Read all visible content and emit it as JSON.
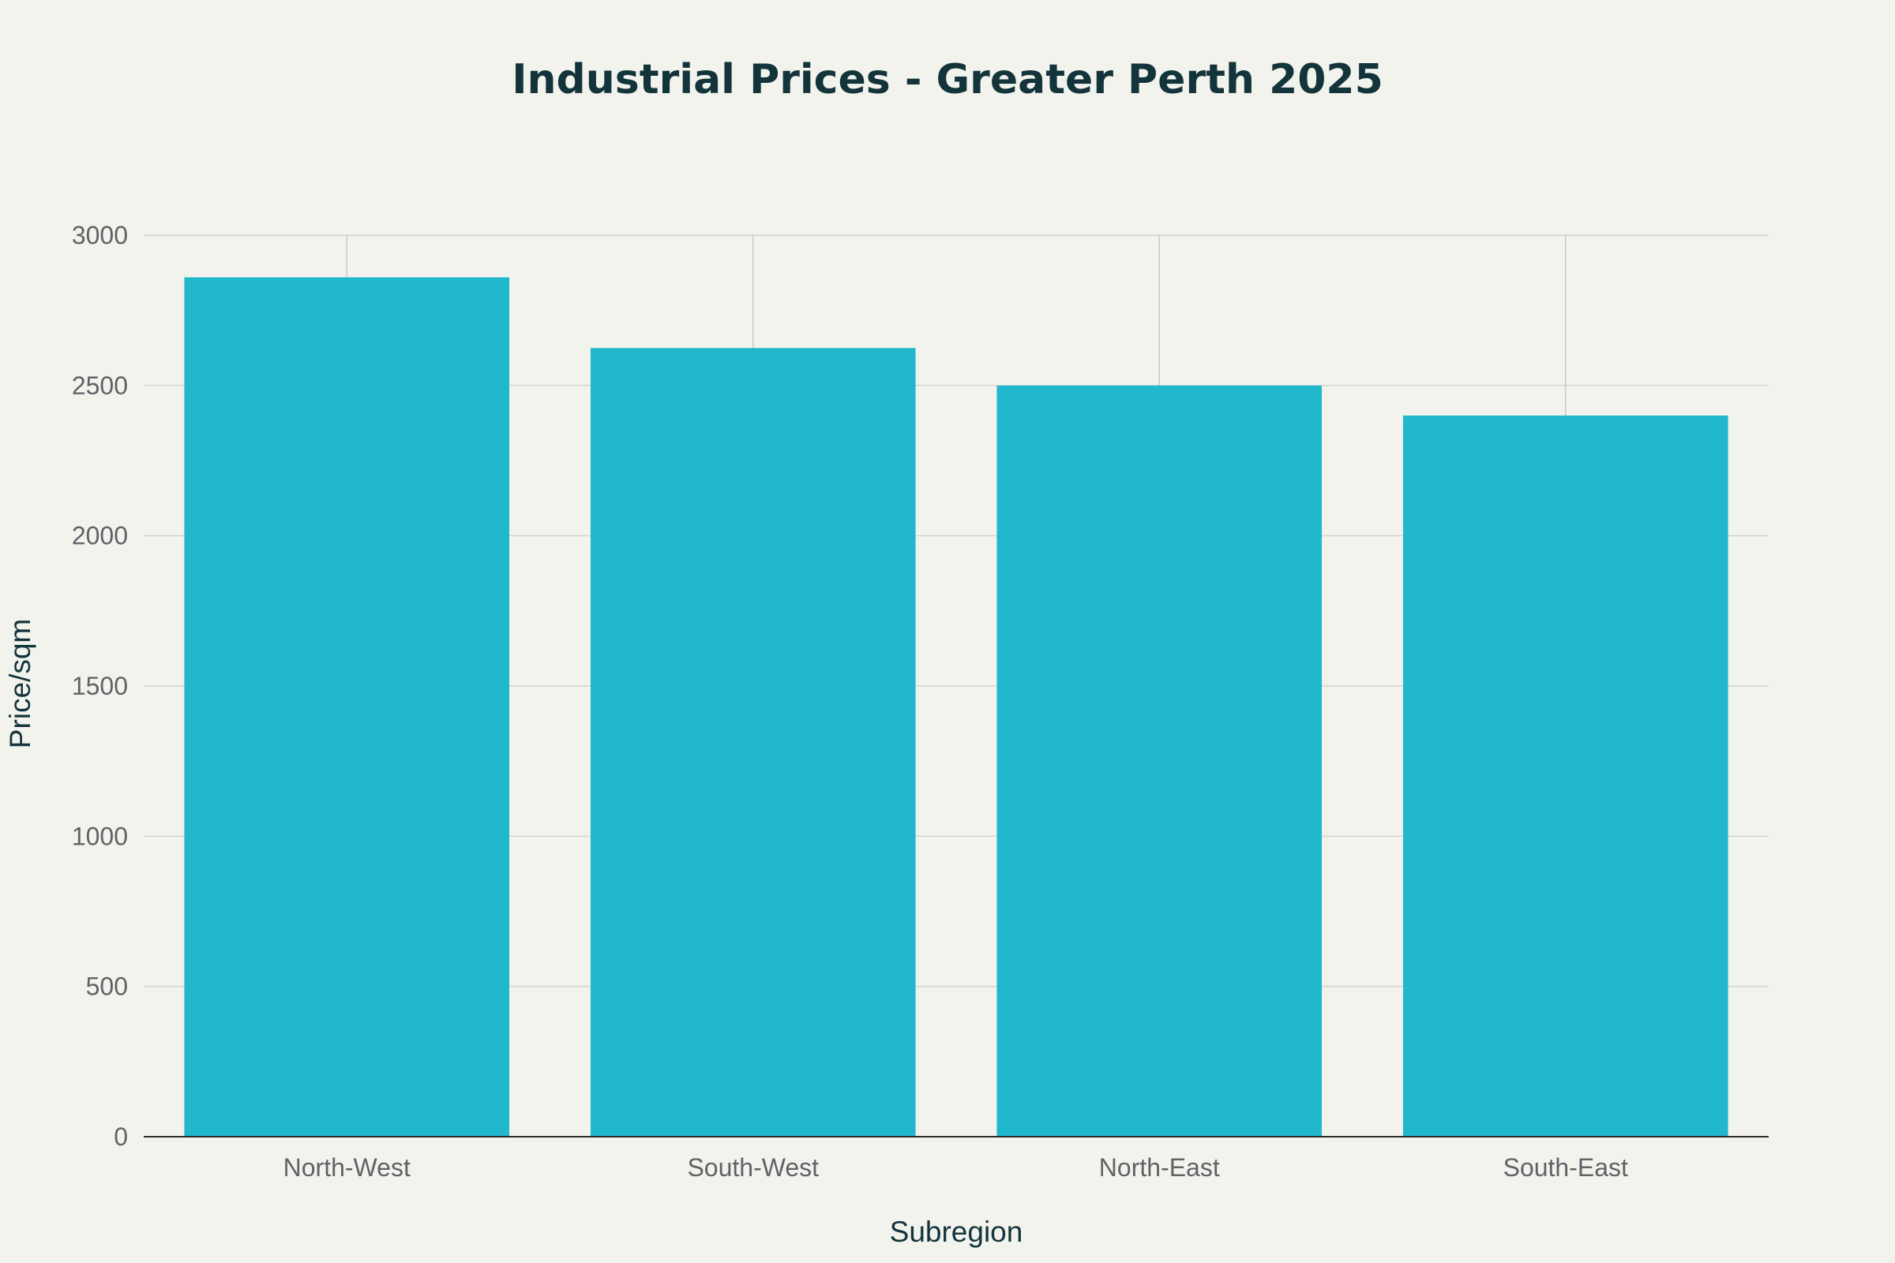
{
  "chart_data": {
    "type": "bar",
    "title": "Industrial Prices - Greater Perth 2025",
    "xlabel": "Subregion",
    "ylabel": "Price/sqm",
    "categories": [
      "North-West",
      "South-West",
      "North-East",
      "South-East"
    ],
    "values": [
      2860,
      2625,
      2500,
      2400
    ],
    "ylim": [
      0,
      3000
    ],
    "yticks": [
      0,
      500,
      1000,
      1500,
      2000,
      2500,
      3000
    ],
    "grid": true,
    "legend": "none",
    "bar_color": "#21b7cc"
  }
}
